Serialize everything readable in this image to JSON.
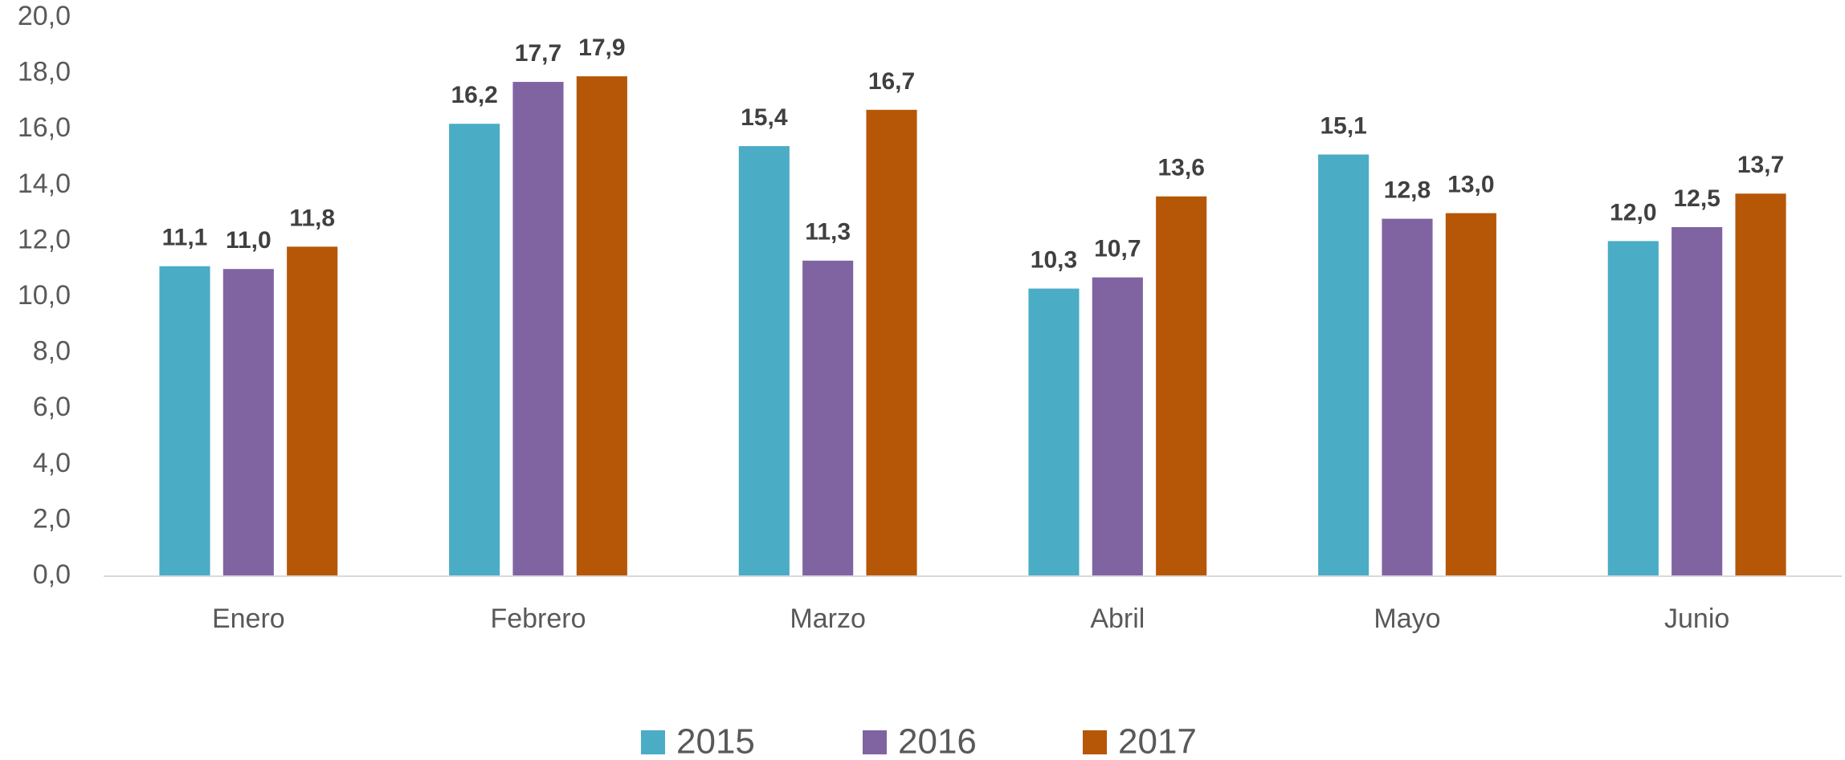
{
  "chart_data": {
    "type": "bar",
    "categories": [
      "Enero",
      "Febrero",
      "Marzo",
      "Abril",
      "Mayo",
      "Junio"
    ],
    "series": [
      {
        "name": "2015",
        "color": "#4bacc6",
        "values": [
          11.1,
          16.2,
          15.4,
          10.3,
          15.1,
          12.0
        ],
        "value_labels": [
          "11,1",
          "16,2",
          "15,4",
          "10,3",
          "15,1",
          "12,0"
        ]
      },
      {
        "name": "2016",
        "color": "#8064a2",
        "values": [
          11.0,
          17.7,
          11.3,
          10.7,
          12.8,
          12.5
        ],
        "value_labels": [
          "11,0",
          "17,7",
          "11,3",
          "10,7",
          "12,8",
          "12,5"
        ]
      },
      {
        "name": "2017",
        "color": "#b65708",
        "values": [
          11.8,
          17.9,
          16.7,
          13.6,
          13.0,
          13.7
        ],
        "value_labels": [
          "11,8",
          "17,9",
          "16,7",
          "13,6",
          "13,0",
          "13,7"
        ]
      }
    ],
    "ylim": [
      0,
      20
    ],
    "yticks": [
      {
        "value": 0,
        "label": "0,0"
      },
      {
        "value": 2,
        "label": "2,0"
      },
      {
        "value": 4,
        "label": "4,0"
      },
      {
        "value": 6,
        "label": "6,0"
      },
      {
        "value": 8,
        "label": "8,0"
      },
      {
        "value": 10,
        "label": "10,0"
      },
      {
        "value": 12,
        "label": "12,0"
      },
      {
        "value": 14,
        "label": "14,0"
      },
      {
        "value": 16,
        "label": "16,0"
      },
      {
        "value": 18,
        "label": "18,0"
      },
      {
        "value": 20,
        "label": "20,0"
      }
    ],
    "grid": false,
    "legend": "bottom"
  }
}
